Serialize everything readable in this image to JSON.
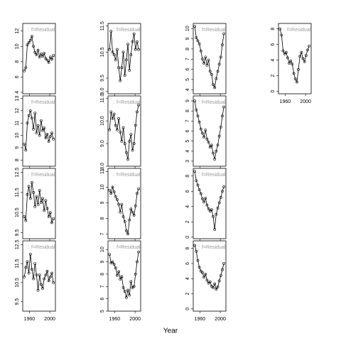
{
  "chart_data": [
    {
      "type": "line",
      "label": "f=Residual",
      "x": [
        1950,
        1953,
        1956,
        1959,
        1962,
        1965,
        1968,
        1971,
        1974,
        1977,
        1980,
        1983,
        1986,
        1989,
        1992,
        1995,
        1998,
        2001,
        2004,
        2007
      ],
      "values": [
        6.8,
        7.2,
        10.2,
        10.5,
        10.8,
        11.3,
        10.0,
        9.2,
        8.9,
        9.5,
        8.6,
        9.0,
        8.7,
        9.1,
        8.4,
        8.2,
        7.9,
        8.6,
        8.3,
        8.8
      ],
      "xlim": [
        1947,
        2011
      ],
      "xticks": [
        1960,
        2000
      ],
      "ylim": [
        3.8,
        13
      ],
      "yticks": [
        4,
        6,
        8,
        10,
        12
      ]
    },
    {
      "type": "line",
      "label": "f=Residual",
      "x": [
        1950,
        1953,
        1956,
        1959,
        1962,
        1965,
        1968,
        1971,
        1974,
        1977,
        1980,
        1983,
        1986,
        1989,
        1992,
        1995,
        1998,
        2001,
        2004,
        2007
      ],
      "values": [
        9.3,
        8.8,
        11.0,
        11.6,
        12.0,
        11.4,
        10.5,
        11.8,
        10.2,
        10.8,
        10.0,
        11.2,
        10.4,
        10.6,
        9.8,
        10.1,
        9.5,
        9.9,
        10.2,
        9.7
      ],
      "xlim": [
        1947,
        2011
      ],
      "xticks": [
        1960,
        2000
      ],
      "ylim": [
        7.5,
        13.2
      ],
      "yticks": [
        8,
        9,
        10,
        11,
        12,
        13
      ]
    },
    {
      "type": "line",
      "label": "f=Residual",
      "x": [
        1950,
        1953,
        1956,
        1959,
        1962,
        1965,
        1968,
        1971,
        1974,
        1977,
        1980,
        1983,
        1986,
        1989,
        1992,
        1995,
        1998,
        2001,
        2004,
        2007
      ],
      "values": [
        10.3,
        10.1,
        11.4,
        11.8,
        11.2,
        12.0,
        11.5,
        10.8,
        11.3,
        10.9,
        11.6,
        11.0,
        11.2,
        10.6,
        11.1,
        10.7,
        10.3,
        10.5,
        10.0,
        10.2
      ],
      "xlim": [
        1947,
        2011
      ],
      "xticks": [
        1960,
        2000
      ],
      "ylim": [
        9.2,
        12.7
      ],
      "yticks": [
        9.5,
        10.5,
        11.5,
        12.5
      ]
    },
    {
      "type": "line",
      "label": "f=Residual",
      "x": [
        1950,
        1953,
        1956,
        1959,
        1962,
        1965,
        1968,
        1971,
        1974,
        1977,
        1980,
        1983,
        1986,
        1989,
        1992,
        1995,
        1998,
        2001,
        2004,
        2007
      ],
      "values": [
        10.8,
        11.3,
        11.6,
        11.0,
        12.0,
        11.2,
        10.7,
        11.5,
        10.9,
        10.1,
        10.9,
        10.4,
        10.2,
        10.7,
        10.9,
        11.1,
        10.6,
        10.8,
        11.0,
        10.5
      ],
      "xlim": [
        1947,
        2011
      ],
      "xticks": [
        1960,
        2000
      ],
      "ylim": [
        9.0,
        12.7
      ],
      "yticks": [
        9.5,
        10.5,
        11.5,
        12.5
      ]
    },
    {
      "type": "line",
      "label": "f=Residual",
      "x": [
        1950,
        1953,
        1956,
        1959,
        1962,
        1965,
        1968,
        1971,
        1974,
        1977,
        1980,
        1983,
        1986,
        1989,
        1992,
        1995,
        1998,
        2001,
        2004,
        2007
      ],
      "values": [
        10.6,
        11.3,
        10.5,
        10.4,
        10.2,
        10.6,
        9.9,
        9.4,
        9.9,
        10.5,
        9.6,
        10.2,
        10.8,
        9.8,
        10.4,
        10.9,
        11.2,
        10.6,
        10.9,
        10.6
      ],
      "xlim": [
        1947,
        2011
      ],
      "xticks": [
        1960,
        2000
      ],
      "ylim": [
        8.9,
        11.6
      ],
      "yticks": [
        {
          "value": 9,
          "label": "9.0"
        },
        9.5,
        10.5,
        11.5
      ]
    },
    {
      "type": "line",
      "label": "f=Residual",
      "x": [
        1950,
        1953,
        1956,
        1959,
        1962,
        1965,
        1968,
        1971,
        1974,
        1977,
        1980,
        1983,
        1986,
        1989,
        1992,
        1995,
        1998,
        2001,
        2004,
        2007
      ],
      "values": [
        9.6,
        10.4,
        10.1,
        10.3,
        9.8,
        9.6,
        10.1,
        9.5,
        9.1,
        9.7,
        9.0,
        8.6,
        8.3,
        9.1,
        9.4,
        8.7,
        9.0,
        9.8,
        10.4,
        10.7
      ],
      "xlim": [
        1947,
        2011
      ],
      "xticks": [
        1960,
        2000
      ],
      "ylim": [
        8.0,
        11.1
      ],
      "yticks": [
        {
          "value": 8,
          "label": "8.0"
        },
        {
          "value": 9,
          "label": "9.0"
        },
        {
          "value": 10,
          "label": "10.0"
        },
        {
          "value": 11,
          "label": "11.0"
        }
      ]
    },
    {
      "type": "line",
      "label": "f=Residual",
      "x": [
        1950,
        1953,
        1956,
        1959,
        1962,
        1965,
        1968,
        1971,
        1974,
        1977,
        1980,
        1983,
        1986,
        1989,
        1992,
        1995,
        1998,
        2001,
        2004,
        2007
      ],
      "values": [
        9.8,
        9.6,
        10.0,
        9.7,
        9.4,
        9.2,
        8.9,
        8.4,
        8.9,
        8.1,
        7.8,
        7.2,
        7.0,
        7.9,
        8.6,
        8.4,
        8.2,
        8.8,
        9.6,
        9.9
      ],
      "xlim": [
        1947,
        2011
      ],
      "xticks": [
        1960,
        2000
      ],
      "ylim": [
        6.7,
        11.2
      ],
      "yticks": [
        7,
        8,
        9,
        10,
        11
      ]
    },
    {
      "type": "line",
      "label": "f=Residual",
      "x": [
        1950,
        1953,
        1956,
        1959,
        1962,
        1965,
        1968,
        1971,
        1974,
        1977,
        1980,
        1983,
        1986,
        1989,
        1992,
        1995,
        1998,
        2001,
        2004,
        2007
      ],
      "values": [
        9.6,
        8.9,
        9.0,
        8.8,
        8.5,
        7.9,
        8.2,
        7.6,
        7.8,
        6.9,
        6.6,
        6.1,
        6.7,
        6.3,
        7.4,
        6.9,
        7.0,
        8.0,
        9.0,
        9.8
      ],
      "xlim": [
        1947,
        2011
      ],
      "xticks": [
        1960,
        2000
      ],
      "ylim": [
        5,
        10.7
      ],
      "yticks": [
        5,
        6,
        7,
        8,
        9,
        10
      ]
    },
    {
      "type": "line",
      "label": "f=Residual",
      "x": [
        1950,
        1953,
        1956,
        1959,
        1962,
        1965,
        1968,
        1971,
        1974,
        1977,
        1980,
        1983,
        1986,
        1989,
        1992,
        1995,
        1998,
        2001,
        2004,
        2007
      ],
      "values": [
        10.2,
        9.1,
        8.8,
        8.5,
        7.8,
        7.0,
        6.6,
        7.2,
        6.4,
        6.9,
        5.8,
        5.5,
        4.5,
        4.2,
        5.1,
        5.8,
        6.5,
        7.2,
        8.4,
        9.5
      ],
      "xlim": [
        1947,
        2011
      ],
      "xticks": [
        1960,
        2000
      ],
      "ylim": [
        3.6,
        10.5
      ],
      "yticks": [
        4,
        5,
        6,
        7,
        8,
        9,
        10
      ]
    },
    {
      "type": "line",
      "label": "f=Residual",
      "x": [
        1950,
        1953,
        1956,
        1959,
        1962,
        1965,
        1968,
        1971,
        1974,
        1977,
        1980,
        1983,
        1986,
        1989,
        1992,
        1995,
        1998,
        2001,
        2004,
        2007
      ],
      "values": [
        9.0,
        8.1,
        7.5,
        6.9,
        6.2,
        5.8,
        5.4,
        6.1,
        5.2,
        4.9,
        4.4,
        4.6,
        3.8,
        3.2,
        4.0,
        4.6,
        5.5,
        6.4,
        7.5,
        8.4
      ],
      "xlim": [
        1947,
        2011
      ],
      "xticks": [
        1960,
        2000
      ],
      "ylim": [
        2.5,
        9.5
      ],
      "yticks": [
        3,
        4,
        5,
        6,
        7,
        8,
        9
      ]
    },
    {
      "type": "line",
      "label": "f=Residual",
      "x": [
        1950,
        1953,
        1956,
        1959,
        1962,
        1965,
        1968,
        1971,
        1974,
        1977,
        1980,
        1983,
        1986,
        1989,
        1992,
        1995,
        1998,
        2001,
        2004,
        2007
      ],
      "values": [
        8.6,
        7.4,
        6.8,
        6.2,
        5.7,
        5.0,
        4.6,
        5.1,
        4.2,
        3.7,
        3.4,
        3.6,
        2.7,
        1.0,
        3.0,
        3.8,
        4.5,
        5.2,
        6.0,
        6.6
      ],
      "xlim": [
        1947,
        2011
      ],
      "xticks": [
        1960,
        2000
      ],
      "ylim": [
        -0.2,
        9
      ],
      "yticks": [
        0,
        2,
        4,
        6,
        8
      ]
    },
    {
      "type": "line",
      "label": "f=Residual",
      "x": [
        1950,
        1953,
        1956,
        1959,
        1962,
        1965,
        1968,
        1971,
        1974,
        1977,
        1980,
        1983,
        1986,
        1989,
        1992,
        1995,
        1998,
        2001,
        2004,
        2007
      ],
      "values": [
        8.4,
        7.6,
        6.4,
        5.5,
        5.0,
        4.8,
        4.2,
        4.6,
        3.8,
        3.4,
        3.6,
        3.0,
        2.8,
        3.3,
        2.6,
        2.9,
        3.7,
        4.4,
        5.2,
        6.0
      ],
      "xlim": [
        1947,
        2011
      ],
      "xticks": [
        1960,
        2000
      ],
      "ylim": [
        -0.3,
        9
      ],
      "yticks": [
        0,
        2,
        4,
        6,
        8
      ]
    },
    {
      "type": "line",
      "label": "f=Residual",
      "x": [
        1950,
        1953,
        1956,
        1959,
        1962,
        1965,
        1968,
        1971,
        1974,
        1977,
        1980,
        1983,
        1986,
        1989,
        1992,
        1995,
        1998,
        2001,
        2004,
        2007
      ],
      "values": [
        8.0,
        7.2,
        5.2,
        4.8,
        5.0,
        4.3,
        3.6,
        3.9,
        3.5,
        2.3,
        1.6,
        1.2,
        2.8,
        4.5,
        5.0,
        4.2,
        3.8,
        4.6,
        5.3,
        5.8
      ],
      "xlim": [
        1947,
        2011
      ],
      "xticks": [
        1960,
        2000
      ],
      "ylim": [
        -0.3,
        8.7
      ],
      "yticks": [
        0,
        2,
        4,
        6,
        8
      ]
    }
  ],
  "xlabel": "Year"
}
